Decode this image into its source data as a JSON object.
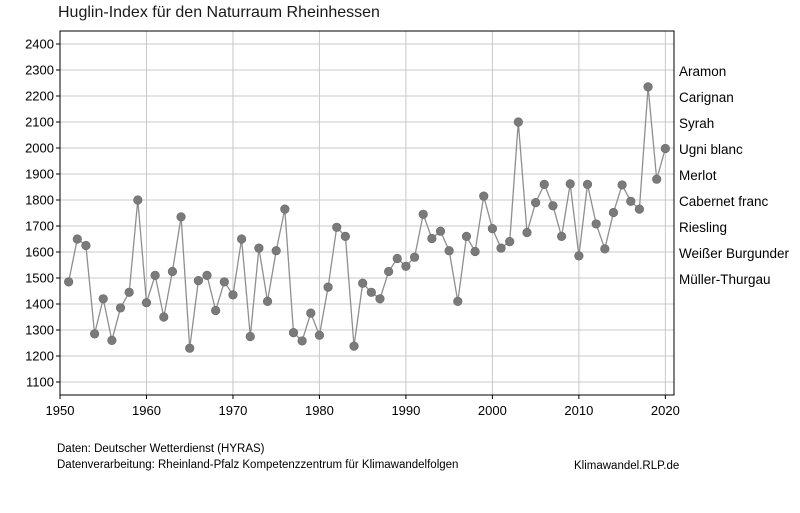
{
  "chart_data": {
    "type": "line",
    "title": "Huglin-Index für den Naturraum Rheinhessen",
    "xlabel": "",
    "ylabel": "",
    "xlim": [
      1950,
      2021
    ],
    "ylim": [
      1050,
      2450
    ],
    "xticks": [
      1950,
      1960,
      1970,
      1980,
      1990,
      2000,
      2010,
      2020
    ],
    "yticks": [
      1100,
      1200,
      1300,
      1400,
      1500,
      1600,
      1700,
      1800,
      1900,
      2000,
      2100,
      2200,
      2300,
      2400
    ],
    "grid": true,
    "line_color": "#8f8f8f",
    "marker_color": "#7a7a7a",
    "grid_color": "#c8c8c8",
    "x": [
      1951,
      1952,
      1953,
      1954,
      1955,
      1956,
      1957,
      1958,
      1959,
      1960,
      1961,
      1962,
      1963,
      1964,
      1965,
      1966,
      1967,
      1968,
      1969,
      1970,
      1971,
      1972,
      1973,
      1974,
      1975,
      1976,
      1977,
      1978,
      1979,
      1980,
      1981,
      1982,
      1983,
      1984,
      1985,
      1986,
      1987,
      1988,
      1989,
      1990,
      1991,
      1992,
      1993,
      1994,
      1995,
      1996,
      1997,
      1998,
      1999,
      2000,
      2001,
      2002,
      2003,
      2004,
      2005,
      2006,
      2007,
      2008,
      2009,
      2010,
      2011,
      2012,
      2013,
      2014,
      2015,
      2016,
      2017,
      2018,
      2019,
      2020
    ],
    "values": [
      1485,
      1650,
      1625,
      1285,
      1420,
      1260,
      1385,
      1445,
      1800,
      1405,
      1510,
      1350,
      1525,
      1735,
      1230,
      1490,
      1510,
      1375,
      1485,
      1435,
      1650,
      1275,
      1615,
      1410,
      1605,
      1765,
      1290,
      1258,
      1365,
      1280,
      1465,
      1695,
      1660,
      1238,
      1480,
      1445,
      1420,
      1525,
      1575,
      1545,
      1580,
      1745,
      1652,
      1680,
      1605,
      1410,
      1660,
      1602,
      1815,
      1690,
      1615,
      1640,
      2100,
      1675,
      1790,
      1860,
      1778,
      1660,
      1862,
      1585,
      1860,
      1708,
      1612,
      1752,
      1858,
      1795,
      1765,
      2235,
      1880,
      1998
    ],
    "reference_labels": [
      {
        "label": "Aramon",
        "value": 2400
      },
      {
        "label": "Carignan",
        "value": 2300
      },
      {
        "label": "Syrah",
        "value": 2200
      },
      {
        "label": "Ugni blanc",
        "value": 2100
      },
      {
        "label": "Merlot",
        "value": 2000
      },
      {
        "label": "Cabernet franc",
        "value": 1900
      },
      {
        "label": "Riesling",
        "value": 1800
      },
      {
        "label": "Weißer Burgunder",
        "value": 1700
      },
      {
        "label": "Müller-Thurgau",
        "value": 1600
      }
    ]
  },
  "footer": {
    "source_line1": "Daten: Deutscher Wetterdienst (HYRAS)",
    "source_line2": "Datenverarbeitung: Rheinland-Pfalz Kompetenzzentrum für Klimawandelfolgen",
    "brand": "Klimawandel.RLP.de"
  }
}
